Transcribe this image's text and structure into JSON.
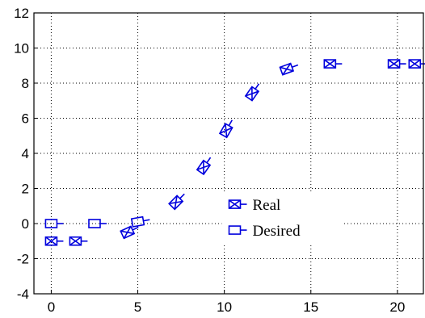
{
  "chart_data": {
    "type": "scatter",
    "title": "",
    "xlabel": "",
    "ylabel": "",
    "xlim": [
      -1,
      21.5
    ],
    "ylim": [
      -4,
      12
    ],
    "xticks": [
      0,
      5,
      10,
      15,
      20
    ],
    "yticks": [
      -4,
      -2,
      0,
      2,
      4,
      6,
      8,
      10,
      12
    ],
    "xtick_labels": [
      "0",
      "5",
      "10",
      "15",
      "20"
    ],
    "ytick_labels": [
      "-4",
      "-2",
      "0",
      "2",
      "4",
      "6",
      "8",
      "10",
      "12"
    ],
    "grid": true,
    "legend_position": "center-right",
    "series": [
      {
        "name": "Real",
        "marker": "crossed-square-with-tail",
        "color": "#0000dd",
        "points": [
          {
            "x": 0.0,
            "y": -1.0,
            "angle": 0
          },
          {
            "x": 1.4,
            "y": -1.0,
            "angle": 0
          },
          {
            "x": 4.4,
            "y": -0.5,
            "angle": -25
          },
          {
            "x": 7.2,
            "y": 1.2,
            "angle": -45
          },
          {
            "x": 8.8,
            "y": 3.2,
            "angle": -55
          },
          {
            "x": 10.1,
            "y": 5.3,
            "angle": -60
          },
          {
            "x": 11.6,
            "y": 7.4,
            "angle": -55
          },
          {
            "x": 13.6,
            "y": 8.8,
            "angle": -20
          },
          {
            "x": 16.1,
            "y": 9.1,
            "angle": 0
          },
          {
            "x": 19.8,
            "y": 9.1,
            "angle": 0
          },
          {
            "x": 21.0,
            "y": 9.1,
            "angle": 0
          }
        ]
      },
      {
        "name": "Desired",
        "marker": "square-with-tail",
        "color": "#0000dd",
        "points": [
          {
            "x": 0.0,
            "y": 0.0,
            "angle": 0
          },
          {
            "x": 2.5,
            "y": 0.0,
            "angle": 0
          },
          {
            "x": 5.0,
            "y": 0.1,
            "angle": -10
          }
        ]
      }
    ]
  }
}
